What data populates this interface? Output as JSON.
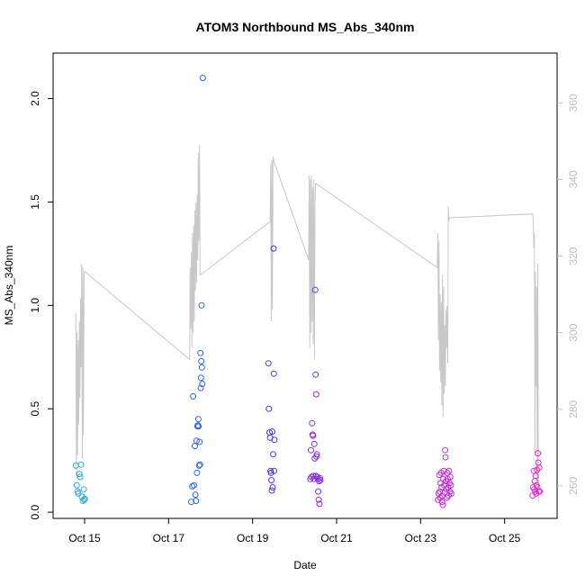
{
  "chart_data": {
    "type": "scatter",
    "title": "ATOM3 Northbound MS_Abs_340nm",
    "xlabel": "Date",
    "ylabel": "MS_Abs_340nm",
    "xlim": [
      "2016-10-14T06:00",
      "2016-10-26T06:00"
    ],
    "ylim": [
      -0.03,
      2.22
    ],
    "y2lim": [
      251.5,
      373
    ],
    "x_ticks": [
      {
        "date": "2016-10-15T00:00",
        "label": "Oct 15"
      },
      {
        "date": "2016-10-17T00:00",
        "label": "Oct 17"
      },
      {
        "date": "2016-10-19T00:00",
        "label": "Oct 19"
      },
      {
        "date": "2016-10-21T00:00",
        "label": "Oct 21"
      },
      {
        "date": "2016-10-23T00:00",
        "label": "Oct 23"
      },
      {
        "date": "2016-10-25T00:00",
        "label": "Oct 25"
      }
    ],
    "y_ticks": [
      0.0,
      0.5,
      1.0,
      1.5,
      2.0
    ],
    "y_tick_labels": [
      "0.0",
      "0.5",
      "1.0",
      "1.5",
      "2.0"
    ],
    "y2_ticks": [
      260,
      280,
      300,
      320,
      340,
      360
    ],
    "y2_tick_labels": [
      "260",
      "280",
      "300",
      "320",
      "340",
      "360"
    ],
    "grid": false,
    "legend": "none",
    "colors": {
      "line": "#c8c8c8",
      "right_axis": "#bdbdbd",
      "axis": "#000000"
    },
    "series": [
      {
        "color": "#29a8e0",
        "points": [
          [
            "2016-10-14T19:00",
            0.225
          ],
          [
            "2016-10-14T19:30",
            0.13
          ],
          [
            "2016-10-14T20:00",
            0.1
          ],
          [
            "2016-10-14T20:20",
            0.09
          ],
          [
            "2016-10-14T21:00",
            0.185
          ],
          [
            "2016-10-14T21:30",
            0.17
          ],
          [
            "2016-10-14T22:00",
            0.23
          ],
          [
            "2016-10-14T22:30",
            0.075
          ],
          [
            "2016-10-14T23:00",
            0.055
          ],
          [
            "2016-10-14T23:30",
            0.11
          ],
          [
            "2016-10-14T23:50",
            0.06
          ],
          [
            "2016-10-15T00:10",
            0.065
          ]
        ]
      },
      {
        "color": "#2e66e6",
        "points": [
          [
            "2016-10-17T13:00",
            0.05
          ],
          [
            "2016-10-17T13:30",
            0.125
          ],
          [
            "2016-10-17T14:00",
            0.56
          ],
          [
            "2016-10-17T14:30",
            0.13
          ],
          [
            "2016-10-17T15:00",
            0.32
          ],
          [
            "2016-10-17T15:20",
            0.085
          ],
          [
            "2016-10-17T15:40",
            0.055
          ],
          [
            "2016-10-17T16:00",
            0.345
          ],
          [
            "2016-10-17T16:15",
            0.19
          ],
          [
            "2016-10-17T16:30",
            0.415
          ],
          [
            "2016-10-17T16:45",
            0.42
          ],
          [
            "2016-10-17T17:00",
            0.45
          ],
          [
            "2016-10-17T17:10",
            0.415
          ],
          [
            "2016-10-17T17:25",
            0.225
          ],
          [
            "2016-10-17T17:40",
            0.34
          ],
          [
            "2016-10-17T17:55",
            0.23
          ],
          [
            "2016-10-17T18:10",
            0.77
          ],
          [
            "2016-10-17T18:20",
            0.6
          ],
          [
            "2016-10-17T18:30",
            0.65
          ],
          [
            "2016-10-17T18:40",
            0.73
          ],
          [
            "2016-10-17T18:50",
            1.0
          ],
          [
            "2016-10-17T19:00",
            0.7
          ],
          [
            "2016-10-17T19:15",
            0.62
          ],
          [
            "2016-10-17T19:30",
            2.1
          ]
        ]
      },
      {
        "color": "#4a35e2",
        "points": [
          [
            "2016-10-19T09:00",
            0.72
          ],
          [
            "2016-10-19T09:20",
            0.5
          ],
          [
            "2016-10-19T09:40",
            0.385
          ],
          [
            "2016-10-19T10:00",
            0.36
          ],
          [
            "2016-10-19T10:15",
            0.2
          ],
          [
            "2016-10-19T10:30",
            0.19
          ],
          [
            "2016-10-19T10:45",
            0.155
          ],
          [
            "2016-10-19T11:00",
            0.105
          ],
          [
            "2016-10-19T11:15",
            0.39
          ],
          [
            "2016-10-19T11:30",
            0.12
          ],
          [
            "2016-10-19T11:45",
            0.28
          ],
          [
            "2016-10-19T12:00",
            1.275
          ],
          [
            "2016-10-19T12:10",
            0.67
          ],
          [
            "2016-10-19T12:20",
            0.2
          ],
          [
            "2016-10-19T12:30",
            0.35
          ]
        ]
      },
      {
        "color": "#8a2de0",
        "points": [
          [
            "2016-10-20T09:00",
            0.16
          ],
          [
            "2016-10-20T09:20",
            0.3
          ],
          [
            "2016-10-20T09:40",
            0.17
          ],
          [
            "2016-10-20T10:00",
            0.43
          ],
          [
            "2016-10-20T10:15",
            0.375
          ],
          [
            "2016-10-20T10:30",
            0.37
          ],
          [
            "2016-10-20T10:45",
            0.175
          ],
          [
            "2016-10-20T11:00",
            0.16
          ],
          [
            "2016-10-20T11:15",
            0.33
          ],
          [
            "2016-10-20T11:30",
            0.26
          ],
          [
            "2016-10-20T11:45",
            1.075
          ],
          [
            "2016-10-20T12:00",
            0.665
          ],
          [
            "2016-10-20T12:10",
            0.175
          ],
          [
            "2016-10-20T12:20",
            0.57
          ],
          [
            "2016-10-20T12:30",
            0.27
          ],
          [
            "2016-10-20T12:45",
            0.28
          ],
          [
            "2016-10-20T13:00",
            0.17
          ],
          [
            "2016-10-20T13:15",
            0.16
          ],
          [
            "2016-10-20T13:30",
            0.1
          ],
          [
            "2016-10-20T13:45",
            0.06
          ],
          [
            "2016-10-20T14:00",
            0.15
          ],
          [
            "2016-10-20T14:15",
            0.04
          ],
          [
            "2016-10-20T14:30",
            0.165
          ],
          [
            "2016-10-20T14:45",
            0.155
          ]
        ]
      },
      {
        "color": "#c12bd8",
        "points": [
          [
            "2016-10-23T10:00",
            0.06
          ],
          [
            "2016-10-23T10:20",
            0.09
          ],
          [
            "2016-10-23T10:40",
            0.18
          ],
          [
            "2016-10-23T11:00",
            0.1
          ],
          [
            "2016-10-23T11:15",
            0.07
          ],
          [
            "2016-10-23T11:30",
            0.14
          ],
          [
            "2016-10-23T11:45",
            0.19
          ],
          [
            "2016-10-23T12:00",
            0.12
          ],
          [
            "2016-10-23T12:15",
            0.05
          ],
          [
            "2016-10-23T12:30",
            0.08
          ],
          [
            "2016-10-23T12:45",
            0.035
          ],
          [
            "2016-10-23T13:00",
            0.16
          ],
          [
            "2016-10-23T13:15",
            0.2
          ],
          [
            "2016-10-23T13:30",
            0.13
          ],
          [
            "2016-10-23T13:45",
            0.095
          ],
          [
            "2016-10-23T14:00",
            0.3
          ],
          [
            "2016-10-23T14:15",
            0.265
          ],
          [
            "2016-10-23T14:30",
            0.15
          ],
          [
            "2016-10-23T14:45",
            0.11
          ],
          [
            "2016-10-23T15:00",
            0.07
          ],
          [
            "2016-10-23T15:15",
            0.19
          ],
          [
            "2016-10-23T15:30",
            0.16
          ],
          [
            "2016-10-23T15:45",
            0.12
          ],
          [
            "2016-10-23T16:00",
            0.08
          ],
          [
            "2016-10-23T16:15",
            0.2
          ],
          [
            "2016-10-23T16:30",
            0.14
          ],
          [
            "2016-10-23T16:45",
            0.1
          ],
          [
            "2016-10-23T17:00",
            0.17
          ],
          [
            "2016-10-23T17:15",
            0.13
          ],
          [
            "2016-10-23T17:30",
            0.09
          ]
        ]
      },
      {
        "color": "#e52ad0",
        "points": [
          [
            "2016-10-25T16:00",
            0.08
          ],
          [
            "2016-10-25T16:20",
            0.12
          ],
          [
            "2016-10-25T16:40",
            0.2
          ],
          [
            "2016-10-25T17:00",
            0.11
          ],
          [
            "2016-10-25T17:15",
            0.15
          ],
          [
            "2016-10-25T17:30",
            0.1
          ],
          [
            "2016-10-25T17:45",
            0.175
          ],
          [
            "2016-10-25T18:00",
            0.09
          ],
          [
            "2016-10-25T18:15",
            0.13
          ],
          [
            "2016-10-25T18:30",
            0.205
          ],
          [
            "2016-10-25T18:45",
            0.12
          ],
          [
            "2016-10-25T19:00",
            0.285
          ],
          [
            "2016-10-25T19:15",
            0.24
          ],
          [
            "2016-10-25T19:30",
            0.1
          ],
          [
            "2016-10-25T19:45",
            0.215
          ],
          [
            "2016-10-25T20:00",
            0.1
          ]
        ]
      }
    ],
    "secondary_line": {
      "axis": "right",
      "points": [
        [
          "2016-10-14T19:00",
          305
        ],
        [
          "2016-10-14T19:20",
          262
        ],
        [
          "2016-10-14T19:40",
          300
        ],
        [
          "2016-10-14T20:00",
          268
        ],
        [
          "2016-10-14T20:20",
          298
        ],
        [
          "2016-10-14T20:40",
          276
        ],
        [
          "2016-10-14T21:00",
          303
        ],
        [
          "2016-10-14T21:20",
          283
        ],
        [
          "2016-10-14T21:40",
          309
        ],
        [
          "2016-10-14T22:00",
          291
        ],
        [
          "2016-10-14T22:20",
          318
        ],
        [
          "2016-10-14T22:40",
          267
        ],
        [
          "2016-10-14T23:00",
          317
        ],
        [
          "2016-10-14T23:20",
          273
        ],
        [
          "2016-10-14T23:40",
          314
        ],
        [
          "2016-10-15T00:00",
          316
        ],
        [
          "2016-10-17T12:00",
          293
        ],
        [
          "2016-10-17T12:20",
          317
        ],
        [
          "2016-10-17T12:40",
          301
        ],
        [
          "2016-10-17T13:00",
          321
        ],
        [
          "2016-10-17T13:20",
          296
        ],
        [
          "2016-10-17T13:40",
          326
        ],
        [
          "2016-10-17T14:00",
          300
        ],
        [
          "2016-10-17T14:20",
          328
        ],
        [
          "2016-10-17T14:40",
          303
        ],
        [
          "2016-10-17T15:00",
          332
        ],
        [
          "2016-10-17T15:20",
          311
        ],
        [
          "2016-10-17T15:40",
          334
        ],
        [
          "2016-10-17T16:00",
          313
        ],
        [
          "2016-10-17T16:20",
          336
        ],
        [
          "2016-10-17T16:40",
          319
        ],
        [
          "2016-10-17T17:00",
          347
        ],
        [
          "2016-10-17T17:20",
          324
        ],
        [
          "2016-10-17T17:40",
          349
        ],
        [
          "2016-10-17T18:00",
          315
        ],
        [
          "2016-10-19T10:00",
          329
        ],
        [
          "2016-10-19T10:20",
          344
        ],
        [
          "2016-10-19T10:40",
          303
        ],
        [
          "2016-10-19T11:00",
          345
        ],
        [
          "2016-10-19T11:20",
          306
        ],
        [
          "2016-10-19T11:40",
          346
        ],
        [
          "2016-10-19T12:00",
          345
        ],
        [
          "2016-10-20T08:00",
          319
        ],
        [
          "2016-10-20T08:20",
          341
        ],
        [
          "2016-10-20T08:40",
          296
        ],
        [
          "2016-10-20T09:00",
          340
        ],
        [
          "2016-10-20T09:20",
          300
        ],
        [
          "2016-10-20T09:40",
          341
        ],
        [
          "2016-10-20T10:00",
          303
        ],
        [
          "2016-10-20T10:20",
          338
        ],
        [
          "2016-10-20T10:40",
          297
        ],
        [
          "2016-10-20T11:00",
          340
        ],
        [
          "2016-10-20T11:20",
          293
        ],
        [
          "2016-10-20T11:40",
          335
        ],
        [
          "2016-10-20T12:00",
          339
        ],
        [
          "2016-10-23T09:30",
          317
        ],
        [
          "2016-10-23T09:50",
          326
        ],
        [
          "2016-10-23T10:10",
          298
        ],
        [
          "2016-10-23T10:30",
          324
        ],
        [
          "2016-10-23T10:50",
          290
        ],
        [
          "2016-10-23T11:10",
          310
        ],
        [
          "2016-10-23T11:30",
          287
        ],
        [
          "2016-10-23T11:50",
          308
        ],
        [
          "2016-10-23T12:10",
          281
        ],
        [
          "2016-10-23T12:30",
          315
        ],
        [
          "2016-10-23T12:50",
          278
        ],
        [
          "2016-10-23T13:10",
          312
        ],
        [
          "2016-10-23T13:30",
          284
        ],
        [
          "2016-10-23T13:50",
          302
        ],
        [
          "2016-10-23T14:10",
          286
        ],
        [
          "2016-10-23T14:30",
          306
        ],
        [
          "2016-10-23T14:50",
          296
        ],
        [
          "2016-10-23T15:10",
          307
        ],
        [
          "2016-10-23T15:30",
          292
        ],
        [
          "2016-10-23T15:50",
          333
        ],
        [
          "2016-10-23T16:10",
          329
        ],
        [
          "2016-10-23T16:30",
          330
        ],
        [
          "2016-10-25T16:00",
          331
        ],
        [
          "2016-10-25T16:20",
          330
        ],
        [
          "2016-10-25T16:40",
          322
        ],
        [
          "2016-10-25T17:00",
          326
        ],
        [
          "2016-10-25T17:20",
          268
        ],
        [
          "2016-10-25T17:40",
          316
        ],
        [
          "2016-10-25T18:00",
          286
        ],
        [
          "2016-10-25T18:20",
          312
        ],
        [
          "2016-10-25T18:40",
          262
        ],
        [
          "2016-10-25T19:00",
          318
        ],
        [
          "2016-10-25T19:20",
          256
        ]
      ]
    }
  }
}
